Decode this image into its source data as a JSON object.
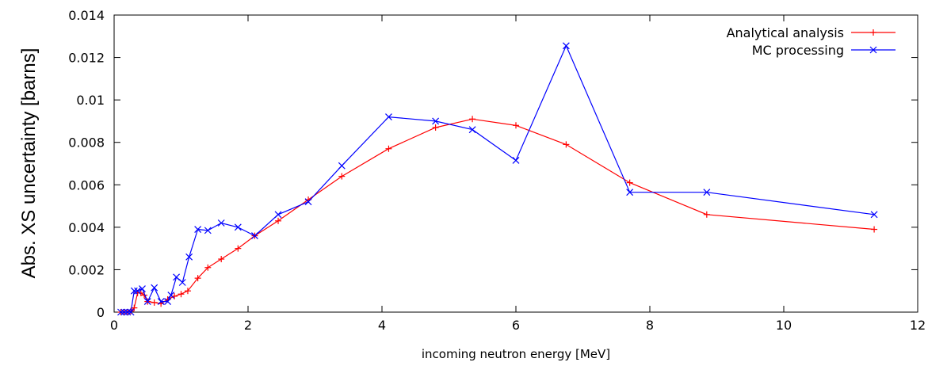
{
  "chart_data": {
    "type": "line",
    "xlabel": "incoming neutron energy [MeV]",
    "ylabel": "Abs. XS uncertainty [barns]",
    "xlim": [
      0,
      12
    ],
    "ylim": [
      0,
      0.014
    ],
    "xticks": [
      0,
      2,
      4,
      6,
      8,
      10,
      12
    ],
    "yticks": [
      0,
      0.002,
      0.004,
      0.006,
      0.008,
      0.01,
      0.012,
      0.014
    ],
    "xtick_labels": [
      "0",
      "2",
      "4",
      "6",
      "8",
      "10",
      "12"
    ],
    "ytick_labels": [
      "0",
      "0.002",
      "0.004",
      "0.006",
      "0.008",
      "0.01",
      "0.012",
      "0.014"
    ],
    "grid": false,
    "legend_position": "top-right",
    "series": [
      {
        "name": "Analytical analysis",
        "color": "#ff0000",
        "marker": "plus",
        "x": [
          0.1,
          0.15,
          0.2,
          0.25,
          0.3,
          0.35,
          0.4,
          0.45,
          0.5,
          0.6,
          0.7,
          0.8,
          0.9,
          1.0,
          1.1,
          1.25,
          1.4,
          1.6,
          1.85,
          2.1,
          2.45,
          2.9,
          3.4,
          4.1,
          4.8,
          5.35,
          6.0,
          6.75,
          7.7,
          8.85,
          11.35
        ],
        "y": [
          0.0,
          0.0,
          0.0,
          5e-05,
          0.0002,
          0.0009,
          0.0009,
          0.0008,
          0.0005,
          0.00045,
          0.0004,
          0.0006,
          0.00075,
          0.00085,
          0.001,
          0.0016,
          0.0021,
          0.0025,
          0.003,
          0.0036,
          0.0043,
          0.0053,
          0.0064,
          0.0077,
          0.0087,
          0.0091,
          0.0088,
          0.0079,
          0.0061,
          0.0046,
          0.0039
        ]
      },
      {
        "name": "MC processing",
        "color": "#0000ff",
        "marker": "cross",
        "x": [
          0.1,
          0.15,
          0.2,
          0.25,
          0.3,
          0.35,
          0.42,
          0.5,
          0.6,
          0.7,
          0.8,
          0.85,
          0.93,
          1.02,
          1.12,
          1.25,
          1.4,
          1.6,
          1.85,
          2.1,
          2.45,
          2.9,
          3.4,
          4.1,
          4.8,
          5.35,
          6.0,
          6.75,
          7.7,
          8.85,
          11.35
        ],
        "y": [
          0.0,
          0.0,
          0.0,
          0.0,
          0.001,
          0.001,
          0.0011,
          0.0005,
          0.00115,
          0.0005,
          0.0005,
          0.0008,
          0.00165,
          0.0014,
          0.0026,
          0.0039,
          0.00385,
          0.0042,
          0.004,
          0.0036,
          0.0046,
          0.0052,
          0.0069,
          0.0092,
          0.009,
          0.0086,
          0.00715,
          0.01255,
          0.00565,
          0.00565,
          0.0046
        ]
      }
    ]
  }
}
